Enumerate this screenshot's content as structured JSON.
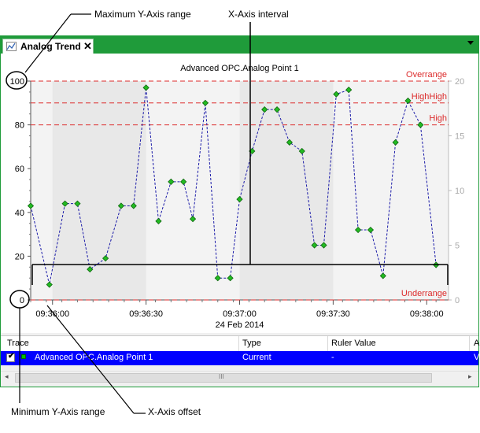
{
  "callouts": {
    "max_y": "Maximum Y-Axis range",
    "x_interval": "X-Axis interval",
    "min_y": "Minimum Y-Axis range",
    "x_offset": "X-Axis offset"
  },
  "tab": {
    "title": "Analog Trend",
    "close": "✕"
  },
  "chart_data": {
    "type": "line",
    "title": "Advanced OPC.Analog Point 1",
    "xlabel": "24 Feb 2014",
    "ylabel": "",
    "x_ticks": [
      "09:36:00",
      "09:36:30",
      "09:37:00",
      "09:37:30",
      "09:38:00"
    ],
    "y_left_ticks": [
      "0",
      "20",
      "40",
      "60",
      "80",
      "100"
    ],
    "y_right_ticks": [
      "0",
      "5",
      "10",
      "15",
      "20"
    ],
    "ylim": [
      0,
      100
    ],
    "y_right_lim": [
      0,
      20
    ],
    "limits": [
      {
        "label": "Overrange",
        "value": 100,
        "color": "#dc2b2b"
      },
      {
        "label": "HighHigh",
        "value": 90,
        "color": "#dc2b2b"
      },
      {
        "label": "High",
        "value": 80,
        "color": "#dc2b2b"
      },
      {
        "label": "Underrange",
        "value": 0,
        "color": "#dc2b2b"
      }
    ],
    "series": [
      {
        "color": "#1a1aa8",
        "x": [
          "09:35:53",
          "09:35:59",
          "09:36:04",
          "09:36:08",
          "09:36:12",
          "09:36:17",
          "09:36:22",
          "09:36:26",
          "09:36:30",
          "09:36:34",
          "09:36:38",
          "09:36:42",
          "09:36:45",
          "09:36:49",
          "09:36:53",
          "09:36:57",
          "09:37:00",
          "09:37:04",
          "09:37:08",
          "09:37:12",
          "09:37:16",
          "09:37:20",
          "09:37:24",
          "09:37:27",
          "09:37:31",
          "09:37:35",
          "09:37:38",
          "09:37:42",
          "09:37:46",
          "09:37:50",
          "09:37:54",
          "09:37:58",
          "09:38:03"
        ],
        "values": [
          43,
          7,
          44,
          44,
          14,
          19,
          43,
          43,
          97,
          36,
          54,
          54,
          37,
          90,
          10,
          10,
          46,
          68,
          87,
          87,
          72,
          68,
          25,
          25,
          94,
          96,
          32,
          32,
          11,
          72,
          91,
          80,
          16
        ]
      }
    ]
  },
  "grid": {
    "headers": [
      "Trace",
      "Type",
      "Ruler Value",
      "A"
    ],
    "row": {
      "name": "Advanced OPC.Analog Point 1",
      "type": "Current",
      "ruler": "-",
      "extra": "V"
    }
  },
  "scroll": {
    "left": "◂",
    "grip": "III",
    "right": "▸"
  }
}
